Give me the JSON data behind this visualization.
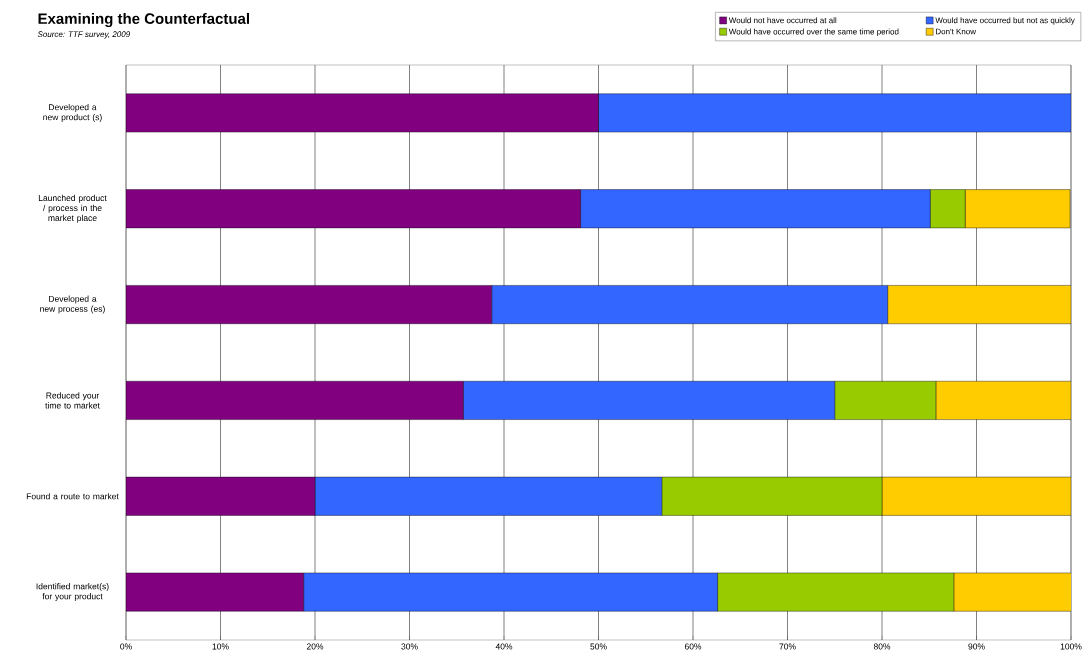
{
  "chart_data": {
    "type": "bar",
    "orientation": "horizontal",
    "stacked": true,
    "title": "Examining the Counterfactual",
    "annotations": [
      "Source: TTF survey, 2009"
    ],
    "categories": [
      "Developed a new product (s)",
      "Launched product / process in the market place",
      "Developed a new process (es)",
      "Reduced your time to market",
      "Found a route to market",
      "Identified market(s) for your product"
    ],
    "series": [
      {
        "name": "Would not have occurred at all",
        "color": "#800080",
        "values": [
          50,
          48.1,
          38.7,
          35.7,
          20,
          18.8
        ]
      },
      {
        "name": "Would have occurred but not as quickly",
        "color": "#3366ff",
        "values": [
          50,
          37.0,
          41.9,
          39.3,
          36.7,
          43.8
        ]
      },
      {
        "name": "Would have occurred over the same time period",
        "color": "#99cc00",
        "values": [
          0,
          3.7,
          0,
          10.7,
          23.3,
          25
        ]
      },
      {
        "name": "Don't Know",
        "color": "#ffcc00",
        "values": [
          0,
          11.1,
          19.4,
          14.3,
          20,
          12.5
        ]
      }
    ],
    "xlim": [
      0,
      100
    ],
    "xticks": [
      {
        "value": 0,
        "label": "0%"
      },
      {
        "value": 10,
        "label": "10%"
      },
      {
        "value": 20,
        "label": "20%"
      },
      {
        "value": 30,
        "label": "30%"
      },
      {
        "value": 40,
        "label": "40%"
      },
      {
        "value": 50,
        "label": "50%"
      },
      {
        "value": 60,
        "label": "60%"
      },
      {
        "value": 70,
        "label": "70%"
      },
      {
        "value": 80,
        "label": "80%"
      },
      {
        "value": 90,
        "label": "90%"
      },
      {
        "value": 100,
        "label": "100%"
      }
    ],
    "grid": "x",
    "legend": "top right"
  }
}
